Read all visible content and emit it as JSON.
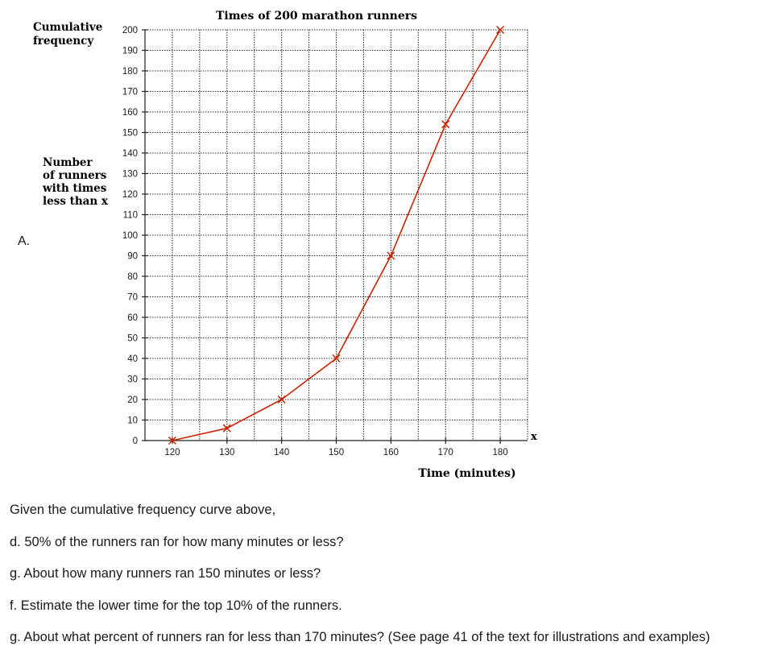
{
  "section_label": "A.",
  "chart_data": {
    "type": "line",
    "title": "Times of 200 marathon runners",
    "ylabel_lines": [
      "Cumulative",
      "frequency"
    ],
    "ylabel_sub_lines": [
      "Number",
      "of runners",
      "with times",
      "less than x"
    ],
    "xlabel": "Time (minutes)",
    "x_axis_var": "x",
    "xlim": [
      115,
      185
    ],
    "ylim": [
      0,
      200
    ],
    "x_ticks": [
      120,
      130,
      140,
      150,
      160,
      170,
      180
    ],
    "y_ticks": [
      0,
      10,
      20,
      30,
      40,
      50,
      60,
      70,
      80,
      90,
      100,
      110,
      120,
      130,
      140,
      150,
      160,
      170,
      180,
      190,
      200
    ],
    "grid": true,
    "line_color": "#cc2200",
    "series": [
      {
        "x": [
          120,
          130,
          140,
          150,
          160,
          170,
          180
        ],
        "y": [
          0,
          6,
          20,
          40,
          90,
          154,
          200
        ]
      }
    ]
  },
  "questions": [
    "Given the cumulative frequency curve above,",
    "d. 50% of the runners ran for how many minutes or less?",
    "g. About how many runners ran 150 minutes or less?",
    "f. Estimate the lower time for the top 10% of the runners.",
    "g. About what percent of runners ran for less than 170 minutes? (See page 41 of the text for illustrations and examples)"
  ]
}
